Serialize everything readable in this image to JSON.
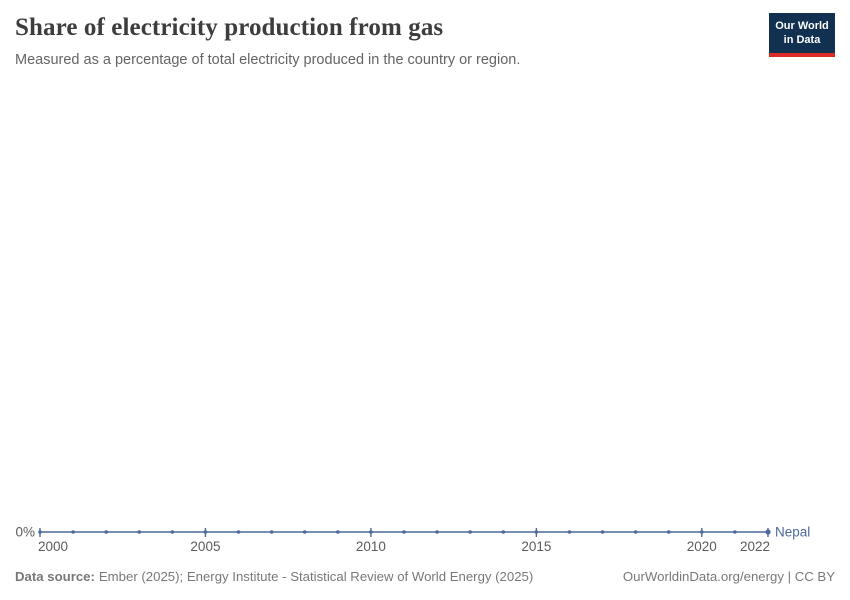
{
  "header": {
    "title": "Share of electricity production from gas",
    "subtitle": "Measured as a percentage of total electricity produced in the country or region.",
    "logo": {
      "line1": "Our World",
      "line2": "in Data",
      "bg_color": "#12304f",
      "accent_color": "#dc2a27"
    }
  },
  "chart_data": {
    "type": "line",
    "title": "Share of electricity production from gas",
    "xlabel": "",
    "ylabel": "",
    "xlim": [
      2000,
      2022
    ],
    "ylim": [
      0,
      0
    ],
    "grid": false,
    "legend_position": "end-of-line",
    "x_ticks": [
      2000,
      2005,
      2010,
      2015,
      2020,
      2022
    ],
    "y_ticks": [
      "0%"
    ],
    "series": [
      {
        "name": "Nepal",
        "color": "#4C6A9C",
        "x": [
          2000,
          2001,
          2002,
          2003,
          2004,
          2005,
          2006,
          2007,
          2008,
          2009,
          2010,
          2011,
          2012,
          2013,
          2014,
          2015,
          2016,
          2017,
          2018,
          2019,
          2020,
          2021,
          2022
        ],
        "values": [
          0,
          0,
          0,
          0,
          0,
          0,
          0,
          0,
          0,
          0,
          0,
          0,
          0,
          0,
          0,
          0,
          0,
          0,
          0,
          0,
          0,
          0,
          0
        ]
      }
    ]
  },
  "footer": {
    "source_label": "Data source:",
    "source_text": "Ember (2025); Energy Institute - Statistical Review of World Energy (2025)",
    "rights": "OurWorldinData.org/energy | CC BY"
  }
}
